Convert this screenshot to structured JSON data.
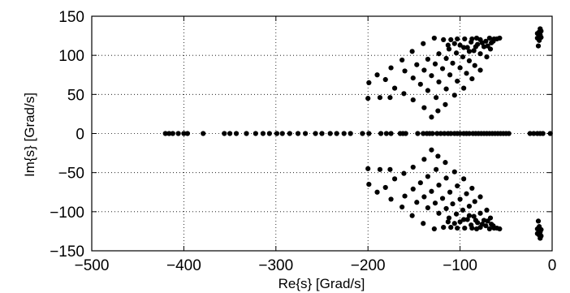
{
  "chart_data": {
    "type": "scatter",
    "title": "",
    "xlabel": "Re{s} [Grad/s]",
    "ylabel": "Im{s} [Grad/s]",
    "xlim": [
      -500,
      0
    ],
    "ylim": [
      -150,
      150
    ],
    "xticks": [
      -500,
      -400,
      -300,
      -200,
      -100,
      0
    ],
    "yticks": [
      -150,
      -100,
      -50,
      0,
      50,
      100,
      150
    ],
    "xtick_labels": [
      "−500",
      "−400",
      "−300",
      "−200",
      "−100",
      "0"
    ],
    "ytick_labels": [
      "−150",
      "−100",
      "−50",
      "0",
      "50",
      "100",
      "150"
    ],
    "grid": true,
    "grid_style": "dotted",
    "marker_color": "#000000",
    "series": [
      {
        "marker": "filled-circle",
        "points": [
          [
            -420,
            0
          ],
          [
            -416,
            0
          ],
          [
            -412,
            0
          ],
          [
            -406,
            0
          ],
          [
            -400,
            0
          ],
          [
            -396,
            0
          ],
          [
            -379,
            0
          ],
          [
            -356,
            0
          ],
          [
            -350,
            0
          ],
          [
            -343,
            0
          ],
          [
            -332,
            0
          ],
          [
            -322,
            0
          ],
          [
            -314,
            0
          ],
          [
            -307,
            0
          ],
          [
            -299,
            0
          ],
          [
            -293,
            0
          ],
          [
            -285,
            0
          ],
          [
            -276,
            0
          ],
          [
            -268,
            0
          ],
          [
            -257,
            0
          ],
          [
            -250,
            0
          ],
          [
            -241,
            0
          ],
          [
            -234,
            0
          ],
          [
            -226,
            0
          ],
          [
            -219,
            0
          ],
          [
            -206,
            0
          ],
          [
            -199,
            0
          ],
          [
            -186,
            0
          ],
          [
            -180,
            0
          ],
          [
            -175,
            0
          ],
          [
            -165,
            0
          ],
          [
            -162,
            0
          ],
          [
            -159,
            0
          ],
          [
            -146,
            0
          ],
          [
            -140,
            0
          ],
          [
            -136,
            0
          ],
          [
            -133,
            0
          ],
          [
            -130,
            0
          ],
          [
            -125,
            0
          ],
          [
            -121,
            0
          ],
          [
            -117,
            0
          ],
          [
            -113,
            0
          ],
          [
            -110,
            0
          ],
          [
            -106,
            0
          ],
          [
            -103,
            0
          ],
          [
            -100,
            0
          ],
          [
            -96,
            0
          ],
          [
            -93,
            0
          ],
          [
            -90,
            0
          ],
          [
            -86,
            0
          ],
          [
            -83,
            0
          ],
          [
            -80,
            0
          ],
          [
            -77,
            0
          ],
          [
            -74,
            0
          ],
          [
            -71,
            0
          ],
          [
            -68,
            0
          ],
          [
            -65,
            0
          ],
          [
            -62,
            0
          ],
          [
            -59,
            0
          ],
          [
            -56,
            0
          ],
          [
            -53,
            0
          ],
          [
            -50,
            0
          ],
          [
            -47,
            0
          ],
          [
            -24,
            0
          ],
          [
            -20,
            0
          ],
          [
            -16,
            0
          ],
          [
            -13,
            0
          ],
          [
            -10,
            0
          ],
          [
            -2,
            0
          ],
          [
            -200,
            45
          ],
          [
            -200,
            -45
          ],
          [
            -199,
            65
          ],
          [
            -199,
            -65
          ],
          [
            -187,
            46
          ],
          [
            -187,
            -46
          ],
          [
            -176,
            46
          ],
          [
            -176,
            -46
          ],
          [
            -190,
            75
          ],
          [
            -190,
            -75
          ],
          [
            -175,
            84
          ],
          [
            -175,
            -84
          ],
          [
            -163,
            94
          ],
          [
            -163,
            -94
          ],
          [
            -152,
            105
          ],
          [
            -152,
            -105
          ],
          [
            -140,
            115
          ],
          [
            -140,
            -115
          ],
          [
            -128,
            122
          ],
          [
            -128,
            -122
          ],
          [
            -181,
            69
          ],
          [
            -181,
            -69
          ],
          [
            -171,
            58
          ],
          [
            -171,
            -58
          ],
          [
            -161,
            51
          ],
          [
            -161,
            -51
          ],
          [
            -151,
            43
          ],
          [
            -151,
            -43
          ],
          [
            -139,
            33
          ],
          [
            -139,
            -33
          ],
          [
            -131,
            21
          ],
          [
            -131,
            -21
          ],
          [
            -124,
            29
          ],
          [
            -124,
            -29
          ],
          [
            -160,
            80
          ],
          [
            -160,
            -80
          ],
          [
            -151,
            71
          ],
          [
            -151,
            -71
          ],
          [
            -143,
            63
          ],
          [
            -143,
            -63
          ],
          [
            -135,
            55
          ],
          [
            -135,
            -55
          ],
          [
            -126,
            46
          ],
          [
            -126,
            -46
          ],
          [
            -116,
            37
          ],
          [
            -116,
            -37
          ],
          [
            -147,
            88
          ],
          [
            -147,
            -88
          ],
          [
            -139,
            81
          ],
          [
            -139,
            -81
          ],
          [
            -131,
            74
          ],
          [
            -131,
            -74
          ],
          [
            -123,
            66
          ],
          [
            -123,
            -66
          ],
          [
            -115,
            57
          ],
          [
            -115,
            -57
          ],
          [
            -106,
            49
          ],
          [
            -106,
            -49
          ],
          [
            -135,
            95
          ],
          [
            -135,
            -95
          ],
          [
            -127,
            89
          ],
          [
            -127,
            -89
          ],
          [
            -119,
            83
          ],
          [
            -119,
            -83
          ],
          [
            -111,
            75
          ],
          [
            -111,
            -75
          ],
          [
            -103,
            67
          ],
          [
            -103,
            -67
          ],
          [
            -96,
            58
          ],
          [
            -96,
            -58
          ],
          [
            -123,
            102
          ],
          [
            -123,
            -102
          ],
          [
            -115,
            96
          ],
          [
            -115,
            -96
          ],
          [
            -108,
            90
          ],
          [
            -108,
            -90
          ],
          [
            -100,
            84
          ],
          [
            -100,
            -84
          ],
          [
            -93,
            77
          ],
          [
            -93,
            -77
          ],
          [
            -87,
            70
          ],
          [
            -87,
            -70
          ],
          [
            -112,
            108
          ],
          [
            -112,
            -108
          ],
          [
            -104,
            103
          ],
          [
            -104,
            -103
          ],
          [
            -97,
            98
          ],
          [
            -97,
            -98
          ],
          [
            -90,
            93
          ],
          [
            -90,
            -93
          ],
          [
            -84,
            87
          ],
          [
            -84,
            -87
          ],
          [
            -78,
            81
          ],
          [
            -78,
            -81
          ],
          [
            -100,
            113
          ],
          [
            -100,
            -113
          ],
          [
            -92,
            110
          ],
          [
            -92,
            -110
          ],
          [
            -85,
            106
          ],
          [
            -85,
            -106
          ],
          [
            -78,
            102
          ],
          [
            -78,
            -102
          ],
          [
            -71,
            98
          ],
          [
            -71,
            -98
          ],
          [
            -88,
            117
          ],
          [
            -88,
            -117
          ],
          [
            -81,
            114
          ],
          [
            -81,
            -114
          ],
          [
            -74,
            111
          ],
          [
            -74,
            -111
          ],
          [
            -67,
            108
          ],
          [
            -67,
            -108
          ],
          [
            -78,
            120
          ],
          [
            -78,
            -120
          ],
          [
            -72,
            118
          ],
          [
            -72,
            -118
          ],
          [
            -66,
            116
          ],
          [
            -66,
            -116
          ],
          [
            -60,
            121
          ],
          [
            -60,
            -121
          ],
          [
            -57,
            122
          ],
          [
            -57,
            -122
          ],
          [
            -118,
            120
          ],
          [
            -118,
            -120
          ],
          [
            -110,
            120
          ],
          [
            -110,
            -120
          ],
          [
            -103,
            121
          ],
          [
            -103,
            -121
          ],
          [
            -95,
            121
          ],
          [
            -95,
            -121
          ],
          [
            -87,
            121
          ],
          [
            -87,
            -121
          ],
          [
            -82,
            122
          ],
          [
            -82,
            -122
          ],
          [
            -68,
            122
          ],
          [
            -68,
            -122
          ],
          [
            -63,
            121
          ],
          [
            -63,
            -121
          ],
          [
            -76,
            116
          ],
          [
            -76,
            -116
          ],
          [
            -70,
            112
          ],
          [
            -70,
            -112
          ],
          [
            -64,
            118
          ],
          [
            -64,
            -118
          ],
          [
            -83,
            111
          ],
          [
            -83,
            -111
          ],
          [
            -90,
            105
          ],
          [
            -90,
            -105
          ],
          [
            -96,
            110
          ],
          [
            -96,
            -110
          ],
          [
            -106,
            115
          ],
          [
            -106,
            -115
          ],
          [
            -113,
            113
          ],
          [
            -113,
            -113
          ],
          [
            -14,
            130
          ],
          [
            -14,
            -130
          ],
          [
            -13,
            126
          ],
          [
            -13,
            -126
          ],
          [
            -12,
            123
          ],
          [
            -12,
            -123
          ],
          [
            -14,
            119
          ],
          [
            -14,
            -119
          ],
          [
            -15,
            112
          ],
          [
            -15,
            -112
          ],
          [
            -16,
            128
          ],
          [
            -16,
            -128
          ],
          [
            -16,
            122
          ],
          [
            -16,
            -122
          ],
          [
            -12,
            131
          ],
          [
            -12,
            -131
          ],
          [
            -13,
            134
          ],
          [
            -13,
            -134
          ]
        ]
      }
    ]
  }
}
